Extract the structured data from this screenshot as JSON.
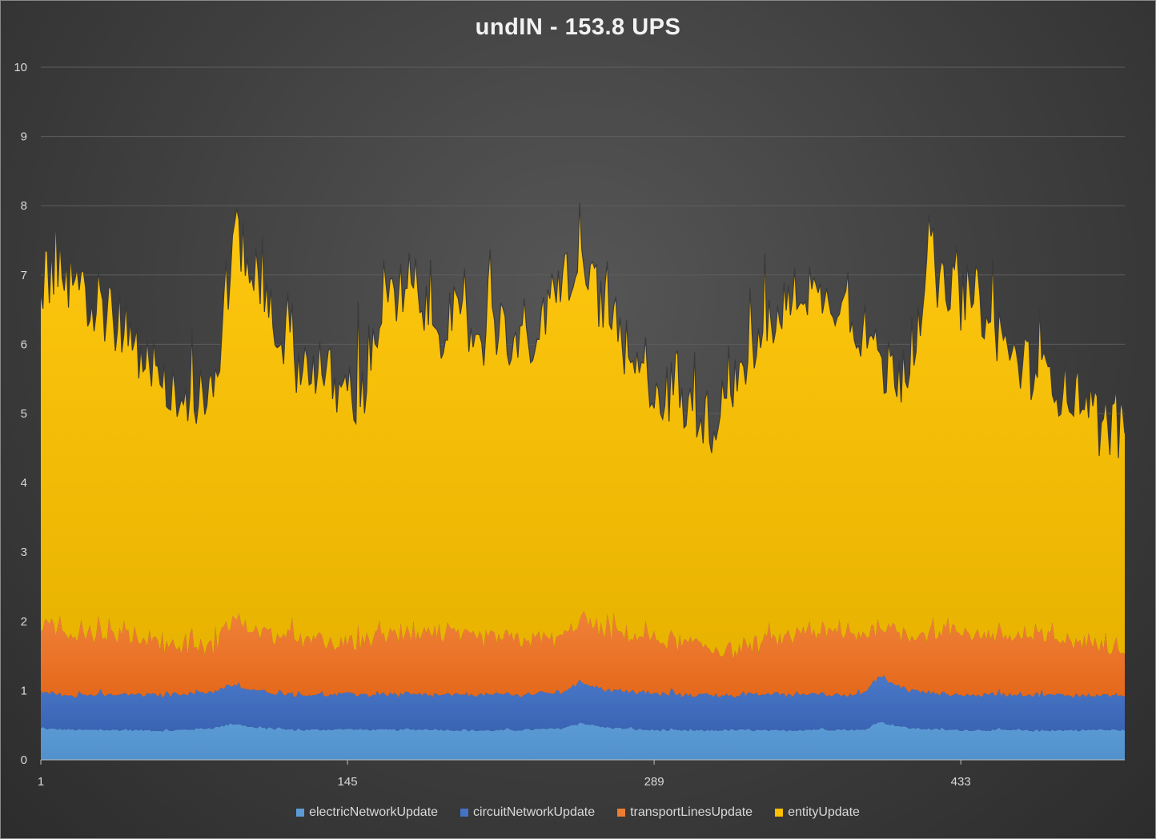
{
  "chart_data": {
    "type": "area",
    "stacked": true,
    "title": "undIN - 153.8 UPS",
    "xlabel": "",
    "ylabel": "",
    "ylim": [
      0,
      10
    ],
    "yticks": [
      0,
      1,
      2,
      3,
      4,
      5,
      6,
      7,
      8,
      9,
      10
    ],
    "xlim": [
      1,
      510
    ],
    "xticks": [
      1,
      145,
      289,
      433
    ],
    "grid": "horizontal",
    "legend_position": "bottom",
    "series": [
      {
        "name": "electricNetworkUpdate",
        "color": "#5b9bd5",
        "x": [
          1,
          20,
          41,
          61,
          82,
          92,
          102,
          122,
          143,
          163,
          184,
          204,
          224,
          245,
          255,
          265,
          286,
          306,
          326,
          347,
          367,
          388,
          394,
          408,
          428,
          449,
          469,
          490,
          510
        ],
        "values": [
          0.45,
          0.43,
          0.43,
          0.42,
          0.46,
          0.52,
          0.46,
          0.43,
          0.44,
          0.43,
          0.44,
          0.42,
          0.43,
          0.45,
          0.53,
          0.47,
          0.43,
          0.42,
          0.43,
          0.42,
          0.44,
          0.43,
          0.55,
          0.46,
          0.43,
          0.43,
          0.42,
          0.43,
          0.43
        ]
      },
      {
        "name": "circuitNetworkUpdate",
        "color": "#4472c4",
        "x": [
          1,
          20,
          41,
          61,
          82,
          92,
          102,
          122,
          143,
          163,
          184,
          204,
          224,
          245,
          255,
          265,
          286,
          306,
          326,
          347,
          367,
          388,
          394,
          408,
          428,
          449,
          469,
          490,
          510
        ],
        "values": [
          0.52,
          0.5,
          0.51,
          0.52,
          0.53,
          0.55,
          0.53,
          0.51,
          0.5,
          0.51,
          0.5,
          0.52,
          0.51,
          0.52,
          0.6,
          0.55,
          0.52,
          0.51,
          0.5,
          0.52,
          0.51,
          0.52,
          0.66,
          0.55,
          0.51,
          0.51,
          0.52,
          0.5,
          0.5
        ]
      },
      {
        "name": "transportLinesUpdate",
        "color": "#ed7d31",
        "x": [
          1,
          20,
          41,
          61,
          82,
          92,
          102,
          122,
          143,
          163,
          184,
          204,
          224,
          245,
          255,
          265,
          286,
          306,
          326,
          347,
          367,
          388,
          394,
          408,
          428,
          449,
          469,
          490,
          510
        ],
        "values": [
          0.95,
          0.9,
          0.85,
          0.7,
          0.65,
          0.95,
          0.85,
          0.8,
          0.7,
          0.85,
          0.88,
          0.82,
          0.8,
          0.78,
          0.9,
          0.85,
          0.8,
          0.72,
          0.65,
          0.78,
          0.9,
          0.85,
          0.72,
          0.8,
          0.92,
          0.85,
          0.82,
          0.78,
          0.7
        ]
      },
      {
        "name": "entityUpdate",
        "color": "#ffc000",
        "x": [
          1,
          10,
          20,
          31,
          41,
          51,
          61,
          72,
          82,
          92,
          102,
          112,
          122,
          133,
          143,
          153,
          163,
          174,
          184,
          194,
          204,
          214,
          224,
          235,
          245,
          255,
          265,
          275,
          286,
          296,
          306,
          316,
          326,
          337,
          347,
          357,
          367,
          377,
          388,
          398,
          408,
          418,
          428,
          439,
          449,
          459,
          469,
          479,
          490,
          500,
          510
        ],
        "values": [
          4.9,
          5.2,
          4.9,
          4.5,
          4.4,
          4.1,
          3.7,
          3.5,
          3.6,
          5.6,
          5.1,
          4.4,
          4.0,
          3.9,
          3.6,
          3.7,
          4.8,
          4.8,
          4.5,
          4.5,
          4.3,
          4.6,
          4.2,
          4.3,
          5.2,
          5.0,
          4.8,
          4.0,
          3.7,
          3.5,
          3.3,
          3.3,
          3.9,
          4.3,
          4.6,
          5.0,
          4.8,
          4.8,
          4.4,
          3.7,
          3.9,
          5.3,
          4.8,
          4.9,
          4.4,
          4.0,
          3.8,
          3.7,
          3.5,
          3.2,
          3.2
        ]
      }
    ]
  }
}
